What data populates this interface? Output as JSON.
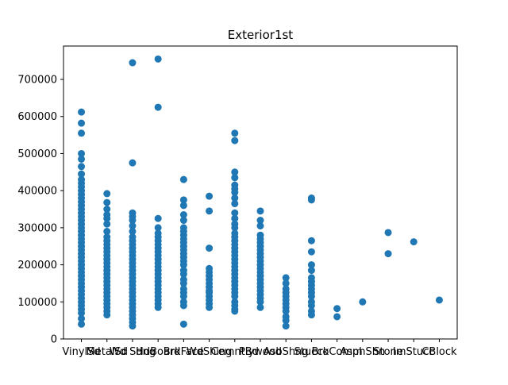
{
  "chart_data": {
    "type": "scatter",
    "title": "Exterior1st",
    "xlabel": "",
    "ylabel": "",
    "categories": [
      "VinylSd",
      "MetalSd",
      "Wd Sdng",
      "HdBoard",
      "BrkFace",
      "WdShing",
      "CemntBd",
      "Plywood",
      "AsbShng",
      "Stucco",
      "BrkComm",
      "AsphShn",
      "Stone",
      "ImStucc",
      "CBlock"
    ],
    "ylim": [
      0,
      790000
    ],
    "yticks": [
      0,
      100000,
      200000,
      300000,
      400000,
      500000,
      600000,
      700000
    ],
    "ytick_labels": [
      "0",
      "100000",
      "200000",
      "300000",
      "400000",
      "500000",
      "600000",
      "700000"
    ],
    "grid": false,
    "marker_color": "#1f77b4",
    "points": {
      "VinylSd": [
        612000,
        582000,
        555000,
        500000,
        485000,
        465000,
        445000,
        430000,
        420000,
        410000,
        400000,
        390000,
        380000,
        370000,
        360000,
        350000,
        340000,
        330000,
        320000,
        310000,
        300000,
        290000,
        280000,
        270000,
        260000,
        250000,
        240000,
        230000,
        220000,
        210000,
        200000,
        190000,
        180000,
        170000,
        160000,
        150000,
        140000,
        130000,
        120000,
        110000,
        100000,
        90000,
        80000,
        70000,
        55000,
        40000
      ],
      "MetalSd": [
        392000,
        368000,
        350000,
        335000,
        325000,
        310000,
        290000,
        275000,
        265000,
        255000,
        245000,
        235000,
        225000,
        215000,
        205000,
        195000,
        185000,
        175000,
        165000,
        155000,
        145000,
        135000,
        125000,
        115000,
        105000,
        95000,
        85000,
        75000,
        65000
      ],
      "Wd Sdng": [
        745000,
        475000,
        340000,
        330000,
        320000,
        305000,
        290000,
        275000,
        265000,
        255000,
        245000,
        235000,
        225000,
        215000,
        205000,
        195000,
        185000,
        175000,
        165000,
        155000,
        145000,
        135000,
        125000,
        115000,
        105000,
        95000,
        85000,
        75000,
        65000,
        55000,
        45000,
        35000
      ],
      "HdBoard": [
        755000,
        625000,
        325000,
        300000,
        285000,
        275000,
        265000,
        255000,
        245000,
        235000,
        225000,
        215000,
        205000,
        195000,
        185000,
        175000,
        165000,
        155000,
        145000,
        135000,
        125000,
        115000,
        105000,
        95000,
        85000
      ],
      "BrkFace": [
        430000,
        375000,
        360000,
        335000,
        320000,
        300000,
        290000,
        280000,
        270000,
        260000,
        250000,
        240000,
        230000,
        220000,
        210000,
        200000,
        185000,
        175000,
        160000,
        150000,
        135000,
        125000,
        115000,
        100000,
        90000,
        40000
      ],
      "WdShing": [
        385000,
        345000,
        245000,
        190000,
        180000,
        170000,
        160000,
        150000,
        140000,
        130000,
        125000,
        115000,
        105000,
        95000,
        85000
      ],
      "CemntBd": [
        555000,
        535000,
        450000,
        435000,
        415000,
        405000,
        395000,
        380000,
        365000,
        340000,
        325000,
        310000,
        300000,
        285000,
        275000,
        265000,
        255000,
        245000,
        235000,
        225000,
        215000,
        205000,
        195000,
        185000,
        175000,
        165000,
        155000,
        145000,
        135000,
        125000,
        115000,
        100000,
        90000,
        80000,
        75000
      ],
      "Plywood": [
        345000,
        320000,
        305000,
        280000,
        270000,
        260000,
        250000,
        240000,
        230000,
        220000,
        210000,
        200000,
        190000,
        180000,
        170000,
        160000,
        150000,
        140000,
        130000,
        120000,
        110000,
        100000,
        85000
      ],
      "AsbShng": [
        165000,
        150000,
        135000,
        125000,
        115000,
        105000,
        95000,
        85000,
        75000,
        60000,
        50000,
        35000
      ],
      "Stucco": [
        380000,
        375000,
        265000,
        235000,
        200000,
        185000,
        165000,
        155000,
        145000,
        135000,
        125000,
        115000,
        100000,
        90000,
        75000,
        65000
      ],
      "BrkComm": [
        82000,
        60000
      ],
      "AsphShn": [
        100000
      ],
      "Stone": [
        287000,
        230000
      ],
      "ImStucc": [
        262000
      ],
      "CBlock": [
        105000
      ]
    }
  }
}
